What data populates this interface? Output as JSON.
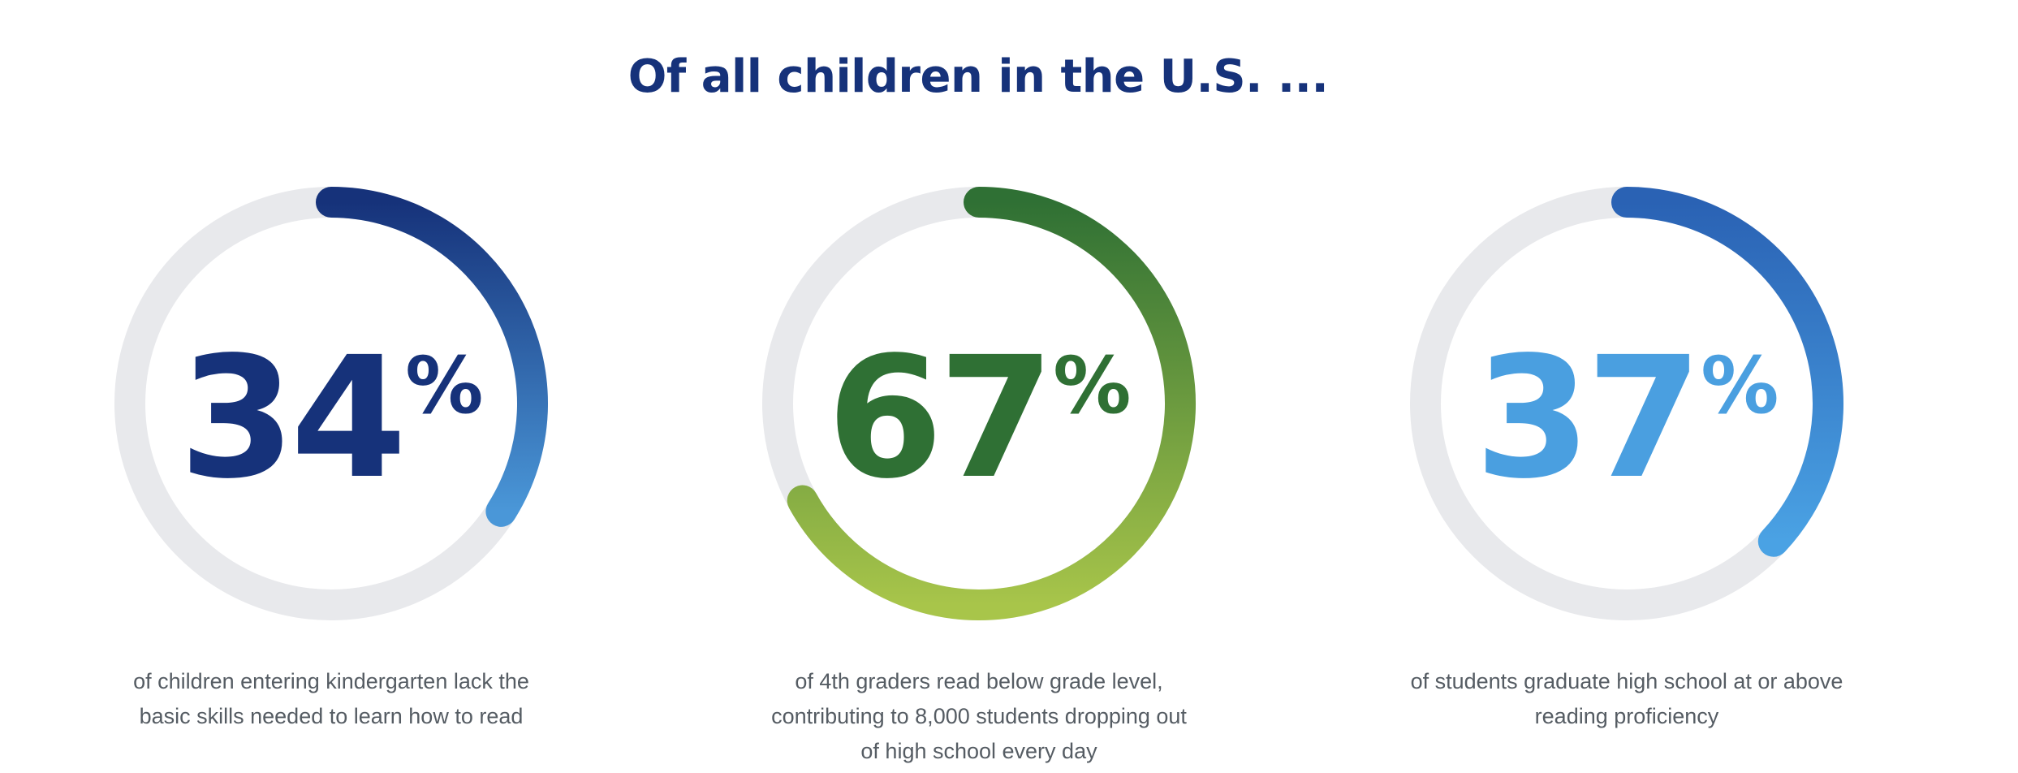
{
  "title": "Of all children in the U.S. ...",
  "chart_data": [
    {
      "type": "donut",
      "value": 34,
      "max": 100,
      "label": "34",
      "unit": "%",
      "caption": [
        "of children entering kindergarten lack the",
        "basic skills needed to learn how to read"
      ],
      "colors": {
        "text": "#16327a",
        "arc_start": "#16327a",
        "arc_end": "#4a97d8",
        "track": "#e8e9ec"
      }
    },
    {
      "type": "donut",
      "value": 67,
      "max": 100,
      "label": "67",
      "unit": "%",
      "caption": [
        "of 4th graders read below grade level,",
        "contributing to 8,000 students dropping out",
        "of high school every day"
      ],
      "colors": {
        "text": "#2f7034",
        "arc_start": "#2f7034",
        "arc_end": "#a8c54a",
        "track": "#e8e9ec"
      }
    },
    {
      "type": "donut",
      "value": 37,
      "max": 100,
      "label": "37",
      "unit": "%",
      "caption": [
        "of students graduate high school at or above",
        "reading proficiency"
      ],
      "colors": {
        "text": "#4a9fe0",
        "arc_start": "#2a62b4",
        "arc_end": "#4aa2e4",
        "track": "#e8e9ec"
      }
    }
  ]
}
